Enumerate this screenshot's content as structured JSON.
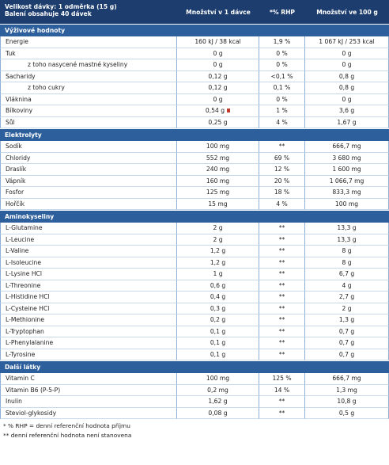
{
  "header": {
    "title_lines": [
      "Velikost dávky: 1 odměrka (15 g)",
      "Balení obsahuje 40 dávek"
    ],
    "columns": [
      "Množství v 1 dávce",
      "*% RHP",
      "Množství ve 100 g"
    ]
  },
  "sections": [
    {
      "title": "Výživové hodnoty",
      "rows": [
        {
          "cells": [
            "Energie",
            "160 kJ / 38 kcal",
            "1,9 %",
            "1 067 kJ / 253 kcal"
          ]
        },
        {
          "cells": [
            "Tuk",
            "0 g",
            "0 %",
            "0 g"
          ]
        },
        {
          "cells": [
            "z toho nasycené mastné kyseliny",
            "0 g",
            "0 %",
            "0 g"
          ],
          "indent": true
        },
        {
          "cells": [
            "Sacharidy",
            "0,12 g",
            "<0,1 %",
            "0,8 g"
          ]
        },
        {
          "cells": [
            "z toho cukry",
            "0,12 g",
            "0,1 %",
            "0,8 g"
          ],
          "indent": true
        },
        {
          "cells": [
            "Vláknina",
            "0 g",
            "0 %",
            "0 g"
          ]
        },
        {
          "cells": [
            "Bílkoviny",
            "0,54 g",
            "1 %",
            "3,6 g"
          ]
        },
        {
          "cells": [
            "Sůl",
            "0,25 g",
            "4 %",
            "1,67 g"
          ]
        }
      ]
    },
    {
      "title": "Elektrolyty",
      "rows": [
        {
          "cells": [
            "Sodík",
            "100 mg",
            "**",
            "666,7 mg"
          ]
        },
        {
          "cells": [
            "Chloridy",
            "552 mg",
            "69 %",
            "3 680 mg"
          ]
        },
        {
          "cells": [
            "Draslík",
            "240 mg",
            "12 %",
            "1 600 mg"
          ]
        },
        {
          "cells": [
            "Vápník",
            "160 mg",
            "20 %",
            "1 066,7 mg"
          ]
        },
        {
          "cells": [
            "Fosfor",
            "125 mg",
            "18 %",
            "833,3 mg"
          ]
        },
        {
          "cells": [
            "Hořčík",
            "15 mg",
            "4 %",
            "100 mg"
          ]
        }
      ]
    },
    {
      "title": "Aminokyseliny",
      "rows": [
        {
          "cells": [
            "L-Glutamine",
            "2 g",
            "**",
            "13,3 g"
          ]
        },
        {
          "cells": [
            "L-Leucine",
            "2 g",
            "**",
            "13,3 g"
          ]
        },
        {
          "cells": [
            "L-Valine",
            "1,2 g",
            "**",
            "8 g"
          ]
        },
        {
          "cells": [
            "L-Isoleucine",
            "1,2 g",
            "**",
            "8 g"
          ]
        },
        {
          "cells": [
            "L-Lysine HCl",
            "1 g",
            "**",
            "6,7 g"
          ]
        },
        {
          "cells": [
            "L-Threonine",
            "0,6 g",
            "**",
            "4 g"
          ]
        },
        {
          "cells": [
            "L-Histidine HCl",
            "0,4 g",
            "**",
            "2,7 g"
          ]
        },
        {
          "cells": [
            "L-Cysteine HCl",
            "0,3 g",
            "**",
            "2 g"
          ]
        },
        {
          "cells": [
            "L-Methionine",
            "0,2 g",
            "**",
            "1,3 g"
          ]
        },
        {
          "cells": [
            "L-Tryptophan",
            "0,1 g",
            "**",
            "0,7 g"
          ]
        },
        {
          "cells": [
            "L-Phenylalanine",
            "0,1 g",
            "**",
            "0,7 g"
          ]
        },
        {
          "cells": [
            "L-Tyrosine",
            "0,1 g",
            "**",
            "0,7 g"
          ]
        }
      ]
    },
    {
      "title": "Další látky",
      "rows": [
        {
          "cells": [
            "Vitamin C",
            "100 mg",
            "125 %",
            "666,7 mg"
          ]
        },
        {
          "cells": [
            "Vitamin B6 (P-5-P)",
            "0,2 mg",
            "14 %",
            "1,3 mg"
          ]
        },
        {
          "cells": [
            "Inulin",
            "1,62 g",
            "**",
            "10,8 g"
          ]
        },
        {
          "cells": [
            "Steviol-glykosidy",
            "0,08 g",
            "**",
            "0,5 g"
          ]
        }
      ]
    }
  ],
  "notes": [
    "* % RHP = denní referenční hodnota příjmu",
    "** denní referenční hodnota není stanovena"
  ]
}
